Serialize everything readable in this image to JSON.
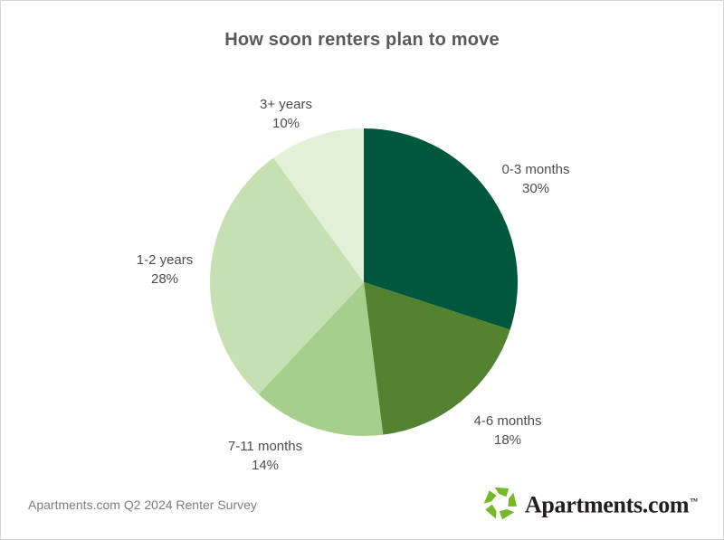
{
  "title": "How soon renters plan to move",
  "chart_data": {
    "type": "pie",
    "title": "How soon renters plan to move",
    "start_angle_deg": 0,
    "direction": "clockwise",
    "legend_position": "labels-around-pie",
    "slices": [
      {
        "label": "0-3 months",
        "value": 30,
        "pct_label": "30%",
        "color": "#00573E"
      },
      {
        "label": "4-6 months",
        "value": 18,
        "pct_label": "18%",
        "color": "#538230"
      },
      {
        "label": "7-11 months",
        "value": 14,
        "pct_label": "14%",
        "color": "#A6CF8D"
      },
      {
        "label": "1-2 years",
        "value": 28,
        "pct_label": "28%",
        "color": "#C6E0B3"
      },
      {
        "label": "3+ years",
        "value": 10,
        "pct_label": "10%",
        "color": "#E3F0D8"
      }
    ]
  },
  "footer": {
    "source_text": "Apartments.com Q2 2024 Renter Survey",
    "logo_text": "Apartments.com",
    "logo_tm": "™",
    "logo_color": "#76B82A"
  },
  "colors": {
    "title_text": "#58595b",
    "label_text": "#4d4d4f",
    "source_text": "#7d7d7d",
    "background": "#ffffff"
  }
}
